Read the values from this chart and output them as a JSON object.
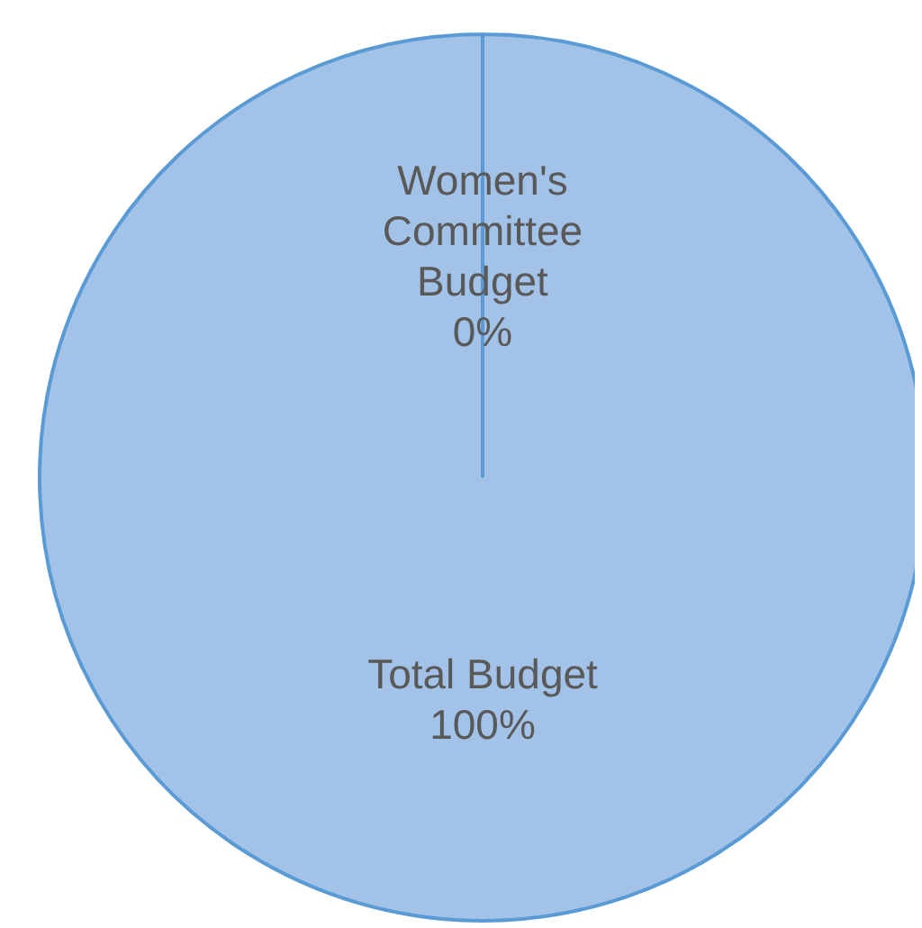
{
  "chart_data": {
    "type": "pie",
    "categories": [
      "Women's Committee Budget",
      "Total Budget"
    ],
    "values": [
      0,
      100
    ],
    "value_labels": [
      "0%",
      "100%"
    ],
    "colors": [
      "#ed7d31",
      "#a3c2e8"
    ],
    "legend": false
  }
}
